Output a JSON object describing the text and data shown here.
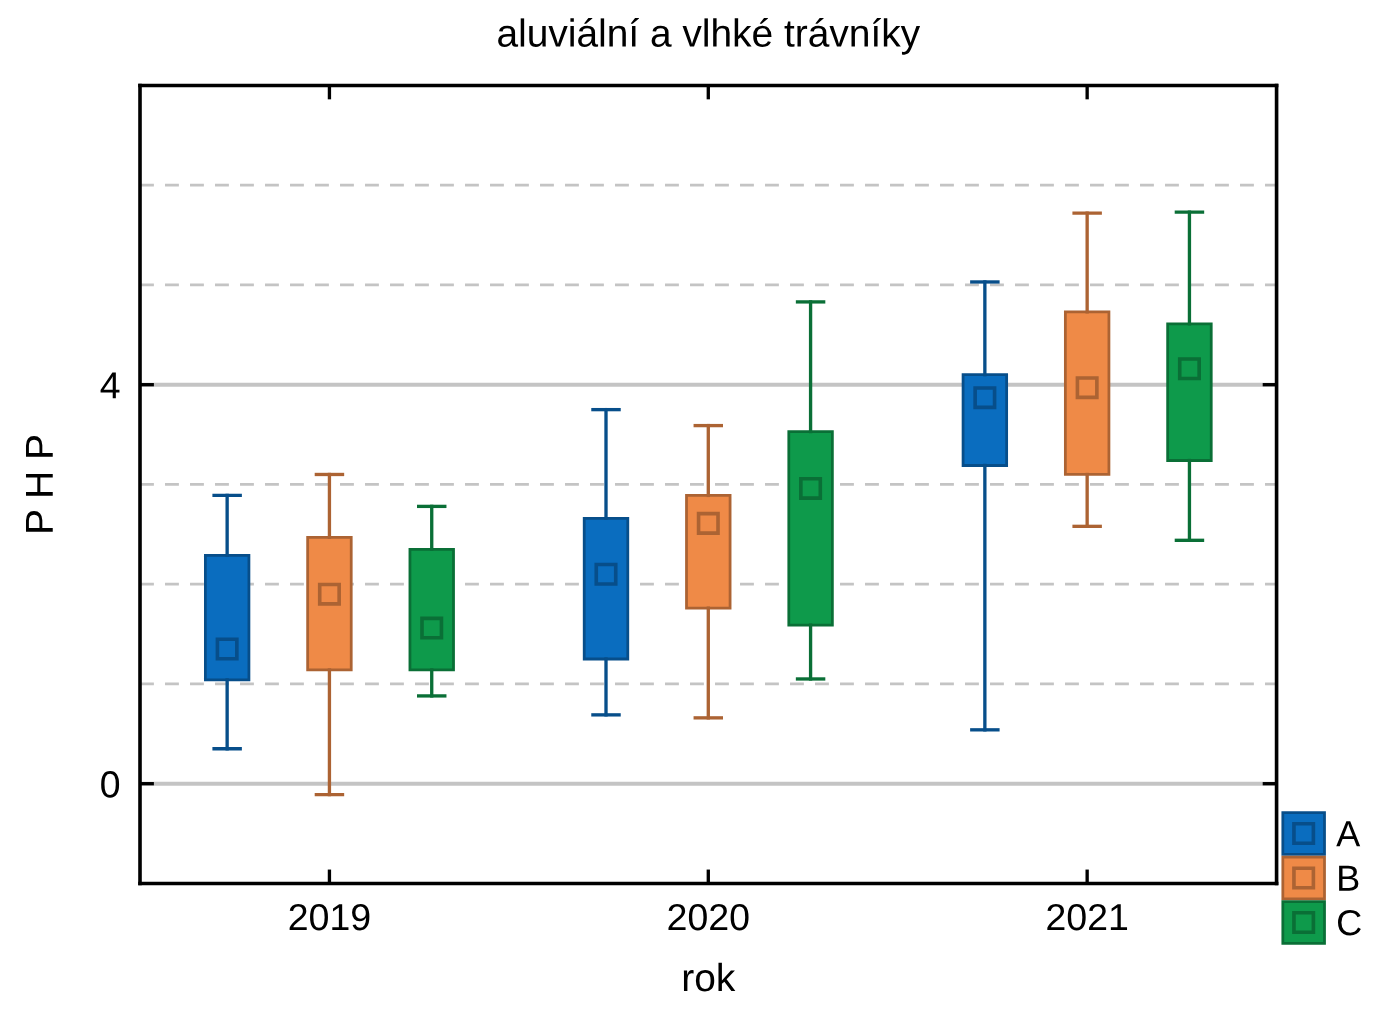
{
  "chart_data": {
    "type": "box",
    "title": "aluviální a vlhké trávníky",
    "xlabel": "rok",
    "ylabel": "P H P",
    "categories": [
      "2019",
      "2020",
      "2021"
    ],
    "series": [
      {
        "name": "A",
        "color": "#0a6dbf",
        "boxes": [
          {
            "low": 0.35,
            "q1": 1.04,
            "median": 1.35,
            "q3": 2.29,
            "high": 2.89
          },
          {
            "low": 0.69,
            "q1": 1.25,
            "median": 2.1,
            "q3": 2.66,
            "high": 3.75
          },
          {
            "low": 0.54,
            "q1": 3.19,
            "median": 3.87,
            "q3": 4.1,
            "high": 5.03
          }
        ]
      },
      {
        "name": "B",
        "color": "#ef8a47",
        "boxes": [
          {
            "low": -0.11,
            "q1": 1.14,
            "median": 1.9,
            "q3": 2.47,
            "high": 3.1
          },
          {
            "low": 0.66,
            "q1": 1.76,
            "median": 2.61,
            "q3": 2.89,
            "high": 3.59
          },
          {
            "low": 2.58,
            "q1": 3.1,
            "median": 3.97,
            "q3": 4.73,
            "high": 5.72
          }
        ]
      },
      {
        "name": "C",
        "color": "#0e9a4b",
        "boxes": [
          {
            "low": 0.88,
            "q1": 1.14,
            "median": 1.56,
            "q3": 2.35,
            "high": 2.78
          },
          {
            "low": 1.05,
            "q1": 1.59,
            "median": 2.96,
            "q3": 3.53,
            "high": 4.83
          },
          {
            "low": 2.44,
            "q1": 3.24,
            "median": 4.16,
            "q3": 4.61,
            "high": 5.73
          }
        ]
      }
    ],
    "ylim": [
      -1,
      7
    ],
    "yticks": [
      0,
      {
        "value": 1,
        "label": null
      },
      {
        "value": 2,
        "label": null
      },
      {
        "value": 3,
        "label": null
      },
      4,
      {
        "value": 5,
        "label": null
      },
      {
        "value": 6,
        "label": null
      }
    ],
    "grid": "y",
    "legend": "bottom right",
    "marker": "square"
  }
}
